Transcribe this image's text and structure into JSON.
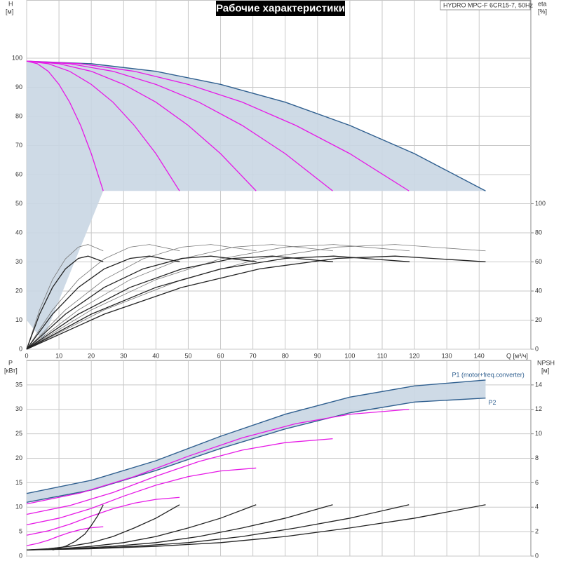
{
  "chart_data": [
    {
      "type": "line",
      "title": "Рабочие характеристики",
      "corner_label": "HYDRO MPC-F 6CR15-7, 50Hz",
      "y_label": "H",
      "y_unit": "[м]",
      "y2_label": "eta",
      "y2_unit": "[%]",
      "x_label": "Q [м³/ч]",
      "xlim": [
        0,
        156
      ],
      "xticks": [
        0,
        10,
        20,
        30,
        40,
        50,
        60,
        70,
        80,
        90,
        100,
        110,
        120,
        130,
        140
      ],
      "ylim": [
        0,
        120
      ],
      "yticks": [
        0,
        10,
        20,
        30,
        40,
        50,
        60,
        70,
        80,
        90,
        100
      ],
      "y2lim": [
        0,
        240
      ],
      "y2ticks": [
        0,
        20,
        40,
        60,
        80,
        100
      ],
      "grid": true,
      "area": {
        "color": "#c9d6e3",
        "x": [
          0,
          20,
          40,
          60,
          80,
          100,
          120,
          142,
          23.7,
          5,
          0
        ],
        "values": [
          99,
          98.1,
          95.5,
          91,
          84.9,
          76.9,
          67.2,
          54.4,
          54.4,
          3,
          10
        ]
      },
      "series": [
        {
          "color": "#2f5f8f",
          "x": [
            0,
            20,
            40,
            60,
            80,
            100,
            120,
            142
          ],
          "values": [
            99,
            98.1,
            95.5,
            91,
            84.9,
            76.9,
            67.2,
            54.4
          ]
        },
        {
          "color": "#e619e6",
          "x": [
            0,
            3.3,
            6.7,
            10,
            13.3,
            16.7,
            20,
            23.7
          ],
          "values": [
            99,
            98.1,
            95.5,
            91,
            84.9,
            76.9,
            67.2,
            54.4
          ]
        },
        {
          "color": "#e619e6",
          "x": [
            0,
            6.7,
            13.3,
            20,
            26.7,
            33.3,
            40,
            47.3
          ],
          "values": [
            99,
            98.1,
            95.5,
            91,
            84.9,
            76.9,
            67.2,
            54.4
          ]
        },
        {
          "color": "#e619e6",
          "x": [
            0,
            10,
            20,
            30,
            40,
            50,
            60,
            71
          ],
          "values": [
            99,
            98.1,
            95.5,
            91,
            84.9,
            76.9,
            67.2,
            54.4
          ]
        },
        {
          "color": "#e619e6",
          "x": [
            0,
            13.3,
            26.7,
            40,
            53.3,
            66.7,
            80,
            94.7
          ],
          "values": [
            99,
            98.1,
            95.5,
            91,
            84.9,
            76.9,
            67.2,
            54.4
          ]
        },
        {
          "color": "#e619e6",
          "x": [
            0,
            16.7,
            33.3,
            50,
            66.7,
            83.3,
            100,
            118.3
          ],
          "values": [
            99,
            98.1,
            95.5,
            91,
            84.9,
            76.9,
            67.2,
            54.4
          ]
        },
        {
          "color": "#777777",
          "axis": "y2",
          "x": [
            0,
            4,
            8,
            12,
            16,
            19,
            23.7
          ],
          "values": [
            0,
            27,
            47.8,
            62.1,
            70.2,
            72,
            67.6
          ]
        },
        {
          "color": "#777777",
          "axis": "y2",
          "x": [
            0,
            8,
            16,
            24,
            32,
            38,
            47.4
          ],
          "values": [
            0,
            27,
            47.8,
            62.1,
            70.2,
            72,
            67.6
          ]
        },
        {
          "color": "#777777",
          "axis": "y2",
          "x": [
            0,
            12,
            24,
            36,
            48,
            57,
            71.1
          ],
          "values": [
            0,
            27,
            47.8,
            62.1,
            70.2,
            72,
            67.6
          ]
        },
        {
          "color": "#777777",
          "axis": "y2",
          "x": [
            0,
            16,
            32,
            48,
            64,
            76,
            94.8
          ],
          "values": [
            0,
            27,
            47.8,
            62.1,
            70.2,
            72,
            67.6
          ]
        },
        {
          "color": "#777777",
          "axis": "y2",
          "x": [
            0,
            20,
            40,
            60,
            80,
            95,
            118.5
          ],
          "values": [
            0,
            27,
            47.8,
            62.1,
            70.2,
            72,
            67.6
          ]
        },
        {
          "color": "#777777",
          "axis": "y2",
          "x": [
            0,
            24,
            48,
            72,
            96,
            114,
            142
          ],
          "values": [
            0,
            27,
            47.8,
            62.1,
            70.2,
            72,
            67.6
          ]
        },
        {
          "color": "#222222",
          "axis": "y2",
          "x": [
            0,
            4,
            8,
            12,
            16,
            19,
            23.7
          ],
          "values": [
            0,
            24.1,
            42.5,
            55.2,
            62.4,
            64,
            60.1
          ]
        },
        {
          "color": "#222222",
          "axis": "y2",
          "x": [
            0,
            8,
            16,
            24,
            32,
            38,
            47.4
          ],
          "values": [
            0,
            24.1,
            42.5,
            55.2,
            62.4,
            64,
            60.1
          ]
        },
        {
          "color": "#222222",
          "axis": "y2",
          "x": [
            0,
            12,
            24,
            36,
            48,
            57,
            71.1
          ],
          "values": [
            0,
            24.1,
            42.5,
            55.2,
            62.4,
            64,
            60.1
          ]
        },
        {
          "color": "#222222",
          "axis": "y2",
          "x": [
            0,
            16,
            32,
            48,
            64,
            76,
            94.8
          ],
          "values": [
            0,
            24.1,
            42.5,
            55.2,
            62.4,
            64,
            60.1
          ]
        },
        {
          "color": "#222222",
          "axis": "y2",
          "x": [
            0,
            20,
            40,
            60,
            80,
            95,
            118.5
          ],
          "values": [
            0,
            24.1,
            42.5,
            55.2,
            62.4,
            64,
            60.1
          ]
        },
        {
          "color": "#222222",
          "axis": "y2",
          "x": [
            0,
            24,
            48,
            72,
            96,
            114,
            142
          ],
          "values": [
            0,
            24.1,
            42.5,
            55.2,
            62.4,
            64,
            60.1
          ]
        }
      ]
    },
    {
      "type": "line",
      "y_label": "P",
      "y_unit": "[кВт]",
      "y2_label": "NPSH",
      "y2_unit": "[м]",
      "xlim": [
        0,
        156
      ],
      "ylim": [
        0,
        40
      ],
      "yticks": [
        0,
        5,
        10,
        15,
        20,
        25,
        30,
        35
      ],
      "y2lim": [
        0,
        16
      ],
      "y2ticks": [
        0,
        2,
        4,
        6,
        8,
        10,
        12,
        14
      ],
      "grid": true,
      "band_color": "#c9d6e3",
      "series": [
        {
          "name": "P1 (motor+freq.converter)",
          "color": "#2f5f8f",
          "x": [
            0,
            20,
            40,
            60,
            80,
            100,
            120,
            142
          ],
          "values": [
            12.8,
            15.5,
            19.5,
            24.5,
            29,
            32.5,
            34.8,
            36
          ]
        },
        {
          "name": "P2",
          "color": "#2f5f8f",
          "x": [
            0,
            20,
            40,
            60,
            80,
            100,
            120,
            142
          ],
          "values": [
            11,
            13.5,
            17.5,
            22,
            26,
            29.3,
            31.5,
            32.3
          ]
        },
        {
          "color": "#e619e6",
          "x": [
            0,
            3.3,
            6.7,
            10,
            13.3,
            16.7,
            20,
            23.7
          ],
          "values": [
            2.13,
            2.58,
            3.25,
            4.08,
            4.83,
            5.42,
            5.8,
            6
          ]
        },
        {
          "color": "#e619e6",
          "x": [
            0,
            6.7,
            13.3,
            20,
            26.7,
            33.3,
            40,
            47.3
          ],
          "values": [
            4.27,
            5.17,
            6.5,
            8.17,
            9.67,
            10.83,
            11.6,
            12
          ]
        },
        {
          "color": "#e619e6",
          "x": [
            0,
            10,
            20,
            30,
            40,
            50,
            60,
            71
          ],
          "values": [
            6.4,
            7.75,
            9.75,
            12.25,
            14.5,
            16.25,
            17.4,
            18
          ]
        },
        {
          "color": "#e619e6",
          "x": [
            0,
            13.3,
            26.7,
            40,
            53.3,
            66.7,
            80,
            94.7
          ],
          "values": [
            8.53,
            10.33,
            13,
            16.33,
            19.33,
            21.67,
            23.2,
            24
          ]
        },
        {
          "color": "#e619e6",
          "x": [
            0,
            16.7,
            33.3,
            50,
            66.7,
            83.3,
            100,
            118.3
          ],
          "values": [
            10.67,
            12.92,
            16.25,
            20.42,
            24.17,
            27.08,
            29,
            30
          ]
        },
        {
          "color": "#222222",
          "axis": "y2",
          "x": [
            8,
            12,
            15,
            18,
            20,
            22,
            23.7
          ],
          "values": [
            0.5,
            0.8,
            1.2,
            1.8,
            2.5,
            3.3,
            4.2
          ]
        },
        {
          "color": "#222222",
          "axis": "y2",
          "x": [
            0,
            6.7,
            13.3,
            20,
            26.7,
            33.3,
            40,
            47.3
          ],
          "values": [
            0.5,
            0.6,
            0.8,
            1.1,
            1.6,
            2.3,
            3.1,
            4.2
          ]
        },
        {
          "color": "#222222",
          "axis": "y2",
          "x": [
            0,
            10,
            20,
            30,
            40,
            50,
            60,
            71
          ],
          "values": [
            0.5,
            0.6,
            0.8,
            1.1,
            1.6,
            2.3,
            3.1,
            4.2
          ]
        },
        {
          "color": "#222222",
          "axis": "y2",
          "x": [
            0,
            13.3,
            26.7,
            40,
            53.3,
            66.7,
            80,
            94.7
          ],
          "values": [
            0.5,
            0.6,
            0.8,
            1.1,
            1.6,
            2.3,
            3.1,
            4.2
          ]
        },
        {
          "color": "#222222",
          "axis": "y2",
          "x": [
            0,
            16.7,
            33.3,
            50,
            66.7,
            83.3,
            100,
            118.3
          ],
          "values": [
            0.5,
            0.6,
            0.8,
            1.1,
            1.6,
            2.3,
            3.1,
            4.2
          ]
        },
        {
          "color": "#222222",
          "axis": "y2",
          "x": [
            0,
            20,
            40,
            60,
            80,
            100,
            120,
            142
          ],
          "values": [
            0.5,
            0.6,
            0.8,
            1.1,
            1.6,
            2.3,
            3.1,
            4.2
          ]
        }
      ]
    }
  ]
}
